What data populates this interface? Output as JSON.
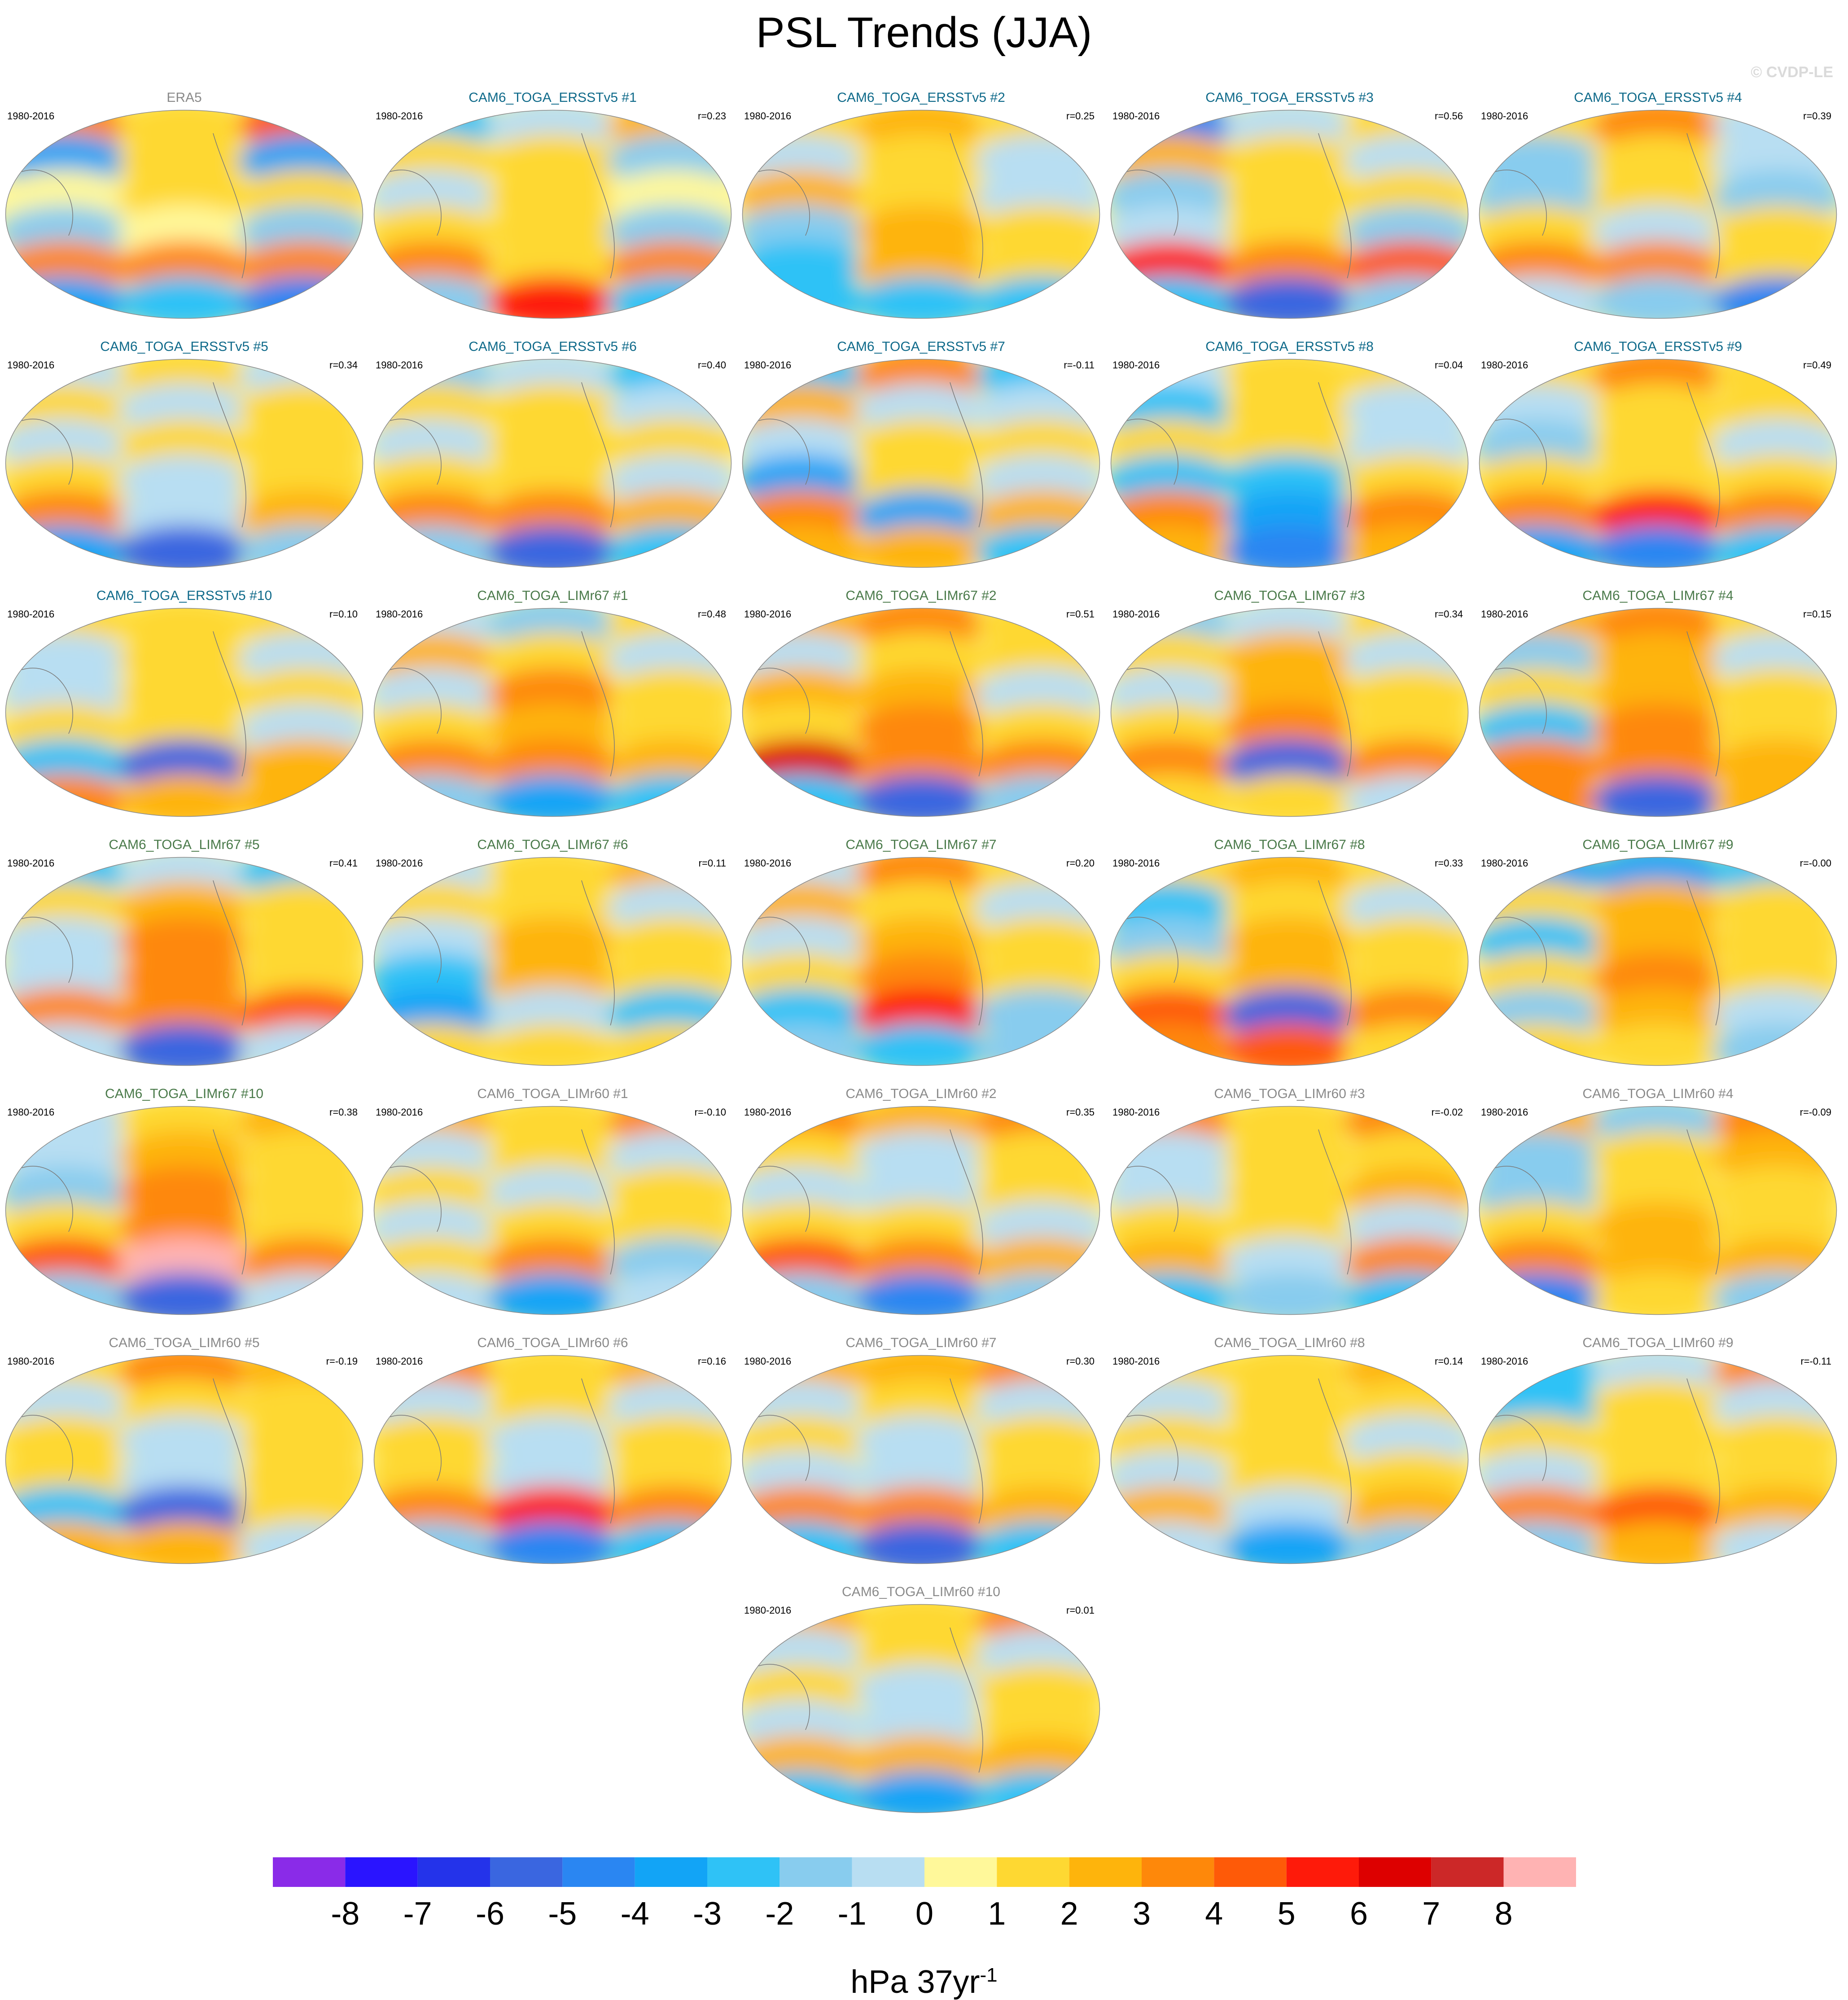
{
  "title": "PSL Trends (JJA)",
  "watermark": "© CVDP-LE",
  "colorbar": {
    "units_text": "hPa 37yr",
    "units_superscript": "-1",
    "ticks": [
      "-8",
      "-7",
      "-6",
      "-5",
      "-4",
      "-3",
      "-2",
      "-1",
      "0",
      "1",
      "2",
      "3",
      "4",
      "5",
      "6",
      "7",
      "8"
    ],
    "colors": [
      "#8a2be8",
      "#2a14ff",
      "#2433ea",
      "#3a66e0",
      "#2a86f2",
      "#12a4f6",
      "#2fc2f6",
      "#88ccee",
      "#b8def2",
      "#fff89a",
      "#fed832",
      "#feb40c",
      "#fe880a",
      "#fe5a08",
      "#fe1a0a",
      "#dd0000",
      "#cc2828",
      "#ffb3b3"
    ]
  },
  "chart_data": {
    "type": "map-panels",
    "variable": "PSL",
    "season": "JJA",
    "units": "hPa 37yr-1",
    "contour_levels": [
      -8,
      -7,
      -6,
      -5,
      -4,
      -3,
      -2,
      -1,
      0,
      1,
      2,
      3,
      4,
      5,
      6,
      7,
      8
    ],
    "panels": [
      {
        "name": "ERA5",
        "period": "1980-2016",
        "r": "",
        "group": "obs",
        "pattern": [
          [
            3,
            1,
            4
          ],
          [
            -4,
            1,
            -4
          ],
          [
            0,
            1,
            1
          ],
          [
            -2,
            0,
            -2
          ],
          [
            3,
            3,
            3
          ],
          [
            -4,
            -3,
            -5
          ]
        ]
      },
      {
        "name": "CAM6_TOGA_ERSSTv5 #1",
        "period": "1980-2016",
        "r": "r=0.23",
        "group": "ersst",
        "pattern": [
          [
            -3,
            -1,
            2
          ],
          [
            1,
            1,
            -2
          ],
          [
            -1,
            1,
            0
          ],
          [
            1,
            1,
            -2
          ],
          [
            3,
            1,
            3
          ],
          [
            -2,
            5,
            -3
          ]
        ]
      },
      {
        "name": "CAM6_TOGA_ERSSTv5 #2",
        "period": "1980-2016",
        "r": "r=0.25",
        "group": "ersst",
        "pattern": [
          [
            1,
            2,
            1
          ],
          [
            -1,
            1,
            -1
          ],
          [
            2,
            1,
            -1
          ],
          [
            -2,
            2,
            1
          ],
          [
            -3,
            2,
            1
          ],
          [
            -3,
            -3,
            -3
          ]
        ]
      },
      {
        "name": "CAM6_TOGA_ERSSTv5 #3",
        "period": "1980-2016",
        "r": "r=0.56",
        "group": "ersst",
        "pattern": [
          [
            -5,
            -1,
            1
          ],
          [
            2,
            1,
            -1
          ],
          [
            -2,
            1,
            1
          ],
          [
            -1,
            1,
            -2
          ],
          [
            5,
            3,
            4
          ],
          [
            -3,
            -6,
            -2
          ]
        ]
      },
      {
        "name": "CAM6_TOGA_ERSSTv5 #4",
        "period": "1980-2016",
        "r": "r=0.39",
        "group": "ersst",
        "pattern": [
          [
            1,
            3,
            -1
          ],
          [
            -2,
            1,
            -1
          ],
          [
            -2,
            1,
            -2
          ],
          [
            1,
            -1,
            1
          ],
          [
            3,
            3,
            1
          ],
          [
            -1,
            -2,
            -5
          ]
        ]
      },
      {
        "name": "CAM6_TOGA_ERSSTv5 #5",
        "period": "1980-2016",
        "r": "r=0.34",
        "group": "ersst",
        "pattern": [
          [
            -1,
            1,
            -1
          ],
          [
            1,
            -1,
            1
          ],
          [
            -1,
            1,
            1
          ],
          [
            1,
            -1,
            1
          ],
          [
            3,
            -1,
            2
          ],
          [
            -4,
            -6,
            -2
          ]
        ]
      },
      {
        "name": "CAM6_TOGA_ERSSTv5 #6",
        "period": "1980-2016",
        "r": "r=0.40",
        "group": "ersst",
        "pattern": [
          [
            -2,
            -1,
            -3
          ],
          [
            1,
            1,
            -1
          ],
          [
            -1,
            1,
            1
          ],
          [
            1,
            1,
            -1
          ],
          [
            3,
            3,
            2
          ],
          [
            -2,
            -6,
            -3
          ]
        ]
      },
      {
        "name": "CAM6_TOGA_ERSSTv5 #7",
        "period": "1980-2016",
        "r": "r=-0.11",
        "group": "ersst",
        "pattern": [
          [
            -3,
            3,
            -3
          ],
          [
            2,
            -1,
            -1
          ],
          [
            -1,
            1,
            1
          ],
          [
            -4,
            1,
            -1
          ],
          [
            3,
            -4,
            2
          ],
          [
            2,
            2,
            -3
          ]
        ]
      },
      {
        "name": "CAM6_TOGA_ERSSTv5 #8",
        "period": "1980-2016",
        "r": "r=0.04",
        "group": "ersst",
        "pattern": [
          [
            -1,
            1,
            1
          ],
          [
            -3,
            1,
            -1
          ],
          [
            1,
            1,
            -1
          ],
          [
            -3,
            -3,
            1
          ],
          [
            3,
            -4,
            3
          ],
          [
            2,
            -5,
            2
          ]
        ]
      },
      {
        "name": "CAM6_TOGA_ERSSTv5 #9",
        "period": "1980-2016",
        "r": "r=0.49",
        "group": "ersst",
        "pattern": [
          [
            1,
            3,
            1
          ],
          [
            -1,
            1,
            1
          ],
          [
            -2,
            1,
            -1
          ],
          [
            1,
            1,
            1
          ],
          [
            3,
            5,
            3
          ],
          [
            -4,
            -5,
            -3
          ]
        ]
      },
      {
        "name": "CAM6_TOGA_ERSSTv5 #10",
        "period": "1980-2016",
        "r": "r=0.10",
        "group": "ersst",
        "pattern": [
          [
            1,
            1,
            1
          ],
          [
            -1,
            1,
            -1
          ],
          [
            -1,
            1,
            1
          ],
          [
            1,
            1,
            -1
          ],
          [
            -3,
            -6,
            2
          ],
          [
            3,
            2,
            2
          ]
        ]
      },
      {
        "name": "CAM6_TOGA_LIMr67 #1",
        "period": "1980-2016",
        "r": "r=0.48",
        "group": "lim67",
        "pattern": [
          [
            -1,
            -2,
            1
          ],
          [
            2,
            1,
            -1
          ],
          [
            -1,
            3,
            1
          ],
          [
            1,
            2,
            1
          ],
          [
            3,
            3,
            2
          ],
          [
            -2,
            -4,
            -3
          ]
        ]
      },
      {
        "name": "CAM6_TOGA_LIMr67 #2",
        "period": "1980-2016",
        "r": "r=0.51",
        "group": "lim67",
        "pattern": [
          [
            2,
            3,
            1
          ],
          [
            -1,
            1,
            1
          ],
          [
            2,
            2,
            -1
          ],
          [
            1,
            3,
            1
          ],
          [
            6,
            3,
            3
          ],
          [
            -3,
            -6,
            -2
          ]
        ]
      },
      {
        "name": "CAM6_TOGA_LIMr67 #3",
        "period": "1980-2016",
        "r": "r=0.34",
        "group": "lim67",
        "pattern": [
          [
            -2,
            -1,
            1
          ],
          [
            1,
            2,
            -1
          ],
          [
            -1,
            2,
            1
          ],
          [
            1,
            3,
            1
          ],
          [
            3,
            -6,
            3
          ],
          [
            1,
            1,
            -1
          ]
        ]
      },
      {
        "name": "CAM6_TOGA_LIMr67 #4",
        "period": "1980-2016",
        "r": "r=0.15",
        "group": "lim67",
        "pattern": [
          [
            2,
            3,
            1
          ],
          [
            -2,
            2,
            -1
          ],
          [
            1,
            2,
            1
          ],
          [
            -3,
            3,
            1
          ],
          [
            3,
            3,
            2
          ],
          [
            3,
            -6,
            2
          ]
        ]
      },
      {
        "name": "CAM6_TOGA_LIMr67 #5",
        "period": "1980-2016",
        "r": "r=0.41",
        "group": "lim67",
        "pattern": [
          [
            -3,
            -1,
            -3
          ],
          [
            1,
            2,
            1
          ],
          [
            -1,
            3,
            1
          ],
          [
            -1,
            3,
            1
          ],
          [
            3,
            3,
            4
          ],
          [
            -1,
            -6,
            -1
          ]
        ]
      },
      {
        "name": "CAM6_TOGA_LIMr67 #6",
        "period": "1980-2016",
        "r": "r=0.11",
        "group": "lim67",
        "pattern": [
          [
            -1,
            1,
            2
          ],
          [
            1,
            1,
            -1
          ],
          [
            -1,
            2,
            1
          ],
          [
            -3,
            2,
            1
          ],
          [
            -4,
            -1,
            -3
          ],
          [
            1,
            1,
            1
          ]
        ]
      },
      {
        "name": "CAM6_TOGA_LIMr67 #7",
        "period": "1980-2016",
        "r": "r=0.20",
        "group": "lim67",
        "pattern": [
          [
            -1,
            3,
            1
          ],
          [
            2,
            1,
            -1
          ],
          [
            -1,
            2,
            1
          ],
          [
            1,
            3,
            1
          ],
          [
            -3,
            5,
            -2
          ],
          [
            -2,
            -3,
            -2
          ]
        ]
      },
      {
        "name": "CAM6_TOGA_LIMr67 #8",
        "period": "1980-2016",
        "r": "r=0.33",
        "group": "lim67",
        "pattern": [
          [
            1,
            2,
            1
          ],
          [
            -3,
            1,
            -1
          ],
          [
            -2,
            2,
            1
          ],
          [
            1,
            2,
            1
          ],
          [
            4,
            -6,
            3
          ],
          [
            3,
            4,
            1
          ]
        ]
      },
      {
        "name": "CAM6_TOGA_LIMr67 #9",
        "period": "1980-2016",
        "r": "r=-0.00",
        "group": "lim67",
        "pattern": [
          [
            -4,
            -4,
            -3
          ],
          [
            1,
            2,
            1
          ],
          [
            -3,
            2,
            1
          ],
          [
            1,
            3,
            1
          ],
          [
            -2,
            2,
            -1
          ],
          [
            1,
            1,
            -2
          ]
        ]
      },
      {
        "name": "CAM6_TOGA_LIMr67 #10",
        "period": "1980-2016",
        "r": "r=0.38",
        "group": "lim67",
        "pattern": [
          [
            -1,
            1,
            2
          ],
          [
            -1,
            2,
            1
          ],
          [
            -2,
            3,
            1
          ],
          [
            1,
            3,
            1
          ],
          [
            4,
            8,
            3
          ],
          [
            -2,
            -6,
            -1
          ]
        ]
      },
      {
        "name": "CAM6_TOGA_LIMr60 #1",
        "period": "1980-2016",
        "r": "r=-0.10",
        "group": "lim60",
        "pattern": [
          [
            2,
            1,
            3
          ],
          [
            -1,
            1,
            -1
          ],
          [
            1,
            -1,
            1
          ],
          [
            -1,
            1,
            1
          ],
          [
            1,
            3,
            -2
          ],
          [
            -1,
            -4,
            -1
          ]
        ]
      },
      {
        "name": "CAM6_TOGA_LIMr60 #2",
        "period": "1980-2016",
        "r": "r=0.35",
        "group": "lim60",
        "pattern": [
          [
            3,
            2,
            3
          ],
          [
            1,
            -1,
            1
          ],
          [
            -1,
            -1,
            1
          ],
          [
            1,
            1,
            -1
          ],
          [
            4,
            3,
            2
          ],
          [
            -2,
            -5,
            -2
          ]
        ]
      },
      {
        "name": "CAM6_TOGA_LIMr60 #3",
        "period": "1980-2016",
        "r": "r=-0.02",
        "group": "lim60",
        "pattern": [
          [
            3,
            1,
            3
          ],
          [
            -1,
            1,
            1
          ],
          [
            -1,
            1,
            2
          ],
          [
            1,
            1,
            -1
          ],
          [
            2,
            -1,
            3
          ],
          [
            -3,
            -2,
            -3
          ]
        ]
      },
      {
        "name": "CAM6_TOGA_LIMr60 #4",
        "period": "1980-2016",
        "r": "r=-0.09",
        "group": "lim60",
        "pattern": [
          [
            2,
            -2,
            3
          ],
          [
            -2,
            1,
            2
          ],
          [
            -2,
            1,
            1
          ],
          [
            1,
            2,
            1
          ],
          [
            3,
            2,
            2
          ],
          [
            -5,
            1,
            -2
          ]
        ]
      },
      {
        "name": "CAM6_TOGA_LIMr60 #5",
        "period": "1980-2016",
        "r": "r=-0.19",
        "group": "lim60",
        "pattern": [
          [
            1,
            3,
            2
          ],
          [
            -1,
            1,
            1
          ],
          [
            1,
            -1,
            1
          ],
          [
            1,
            -1,
            1
          ],
          [
            -3,
            -6,
            1
          ],
          [
            2,
            2,
            -1
          ]
        ]
      },
      {
        "name": "CAM6_TOGA_LIMr60 #6",
        "period": "1980-2016",
        "r": "r=0.16",
        "group": "lim60",
        "pattern": [
          [
            3,
            1,
            2
          ],
          [
            -1,
            1,
            -1
          ],
          [
            1,
            -1,
            1
          ],
          [
            1,
            -1,
            1
          ],
          [
            3,
            5,
            3
          ],
          [
            -2,
            -5,
            -3
          ]
        ]
      },
      {
        "name": "CAM6_TOGA_LIMr60 #7",
        "period": "1980-2016",
        "r": "r=0.30",
        "group": "lim60",
        "pattern": [
          [
            2,
            2,
            3
          ],
          [
            -1,
            1,
            -1
          ],
          [
            1,
            -1,
            1
          ],
          [
            -1,
            -1,
            1
          ],
          [
            3,
            3,
            2
          ],
          [
            -3,
            -6,
            -3
          ]
        ]
      },
      {
        "name": "CAM6_TOGA_LIMr60 #8",
        "period": "1980-2016",
        "r": "r=0.14",
        "group": "lim60",
        "pattern": [
          [
            1,
            1,
            2
          ],
          [
            -1,
            1,
            1
          ],
          [
            1,
            1,
            -1
          ],
          [
            -1,
            1,
            1
          ],
          [
            2,
            -1,
            2
          ],
          [
            -1,
            -4,
            -2
          ]
        ]
      },
      {
        "name": "CAM6_TOGA_LIMr60 #9",
        "period": "1980-2016",
        "r": "r=-0.11",
        "group": "lim60",
        "pattern": [
          [
            -3,
            -1,
            3
          ],
          [
            -3,
            1,
            -1
          ],
          [
            1,
            1,
            1
          ],
          [
            -1,
            1,
            1
          ],
          [
            3,
            4,
            2
          ],
          [
            -2,
            2,
            -1
          ]
        ]
      },
      {
        "name": "CAM6_TOGA_LIMr60 #10",
        "period": "1980-2016",
        "r": "r=0.01",
        "group": "lim60",
        "pattern": [
          [
            2,
            1,
            3
          ],
          [
            -1,
            1,
            -1
          ],
          [
            1,
            -1,
            1
          ],
          [
            -1,
            -1,
            1
          ],
          [
            2,
            2,
            2
          ],
          [
            -3,
            -4,
            -3
          ]
        ]
      }
    ]
  }
}
